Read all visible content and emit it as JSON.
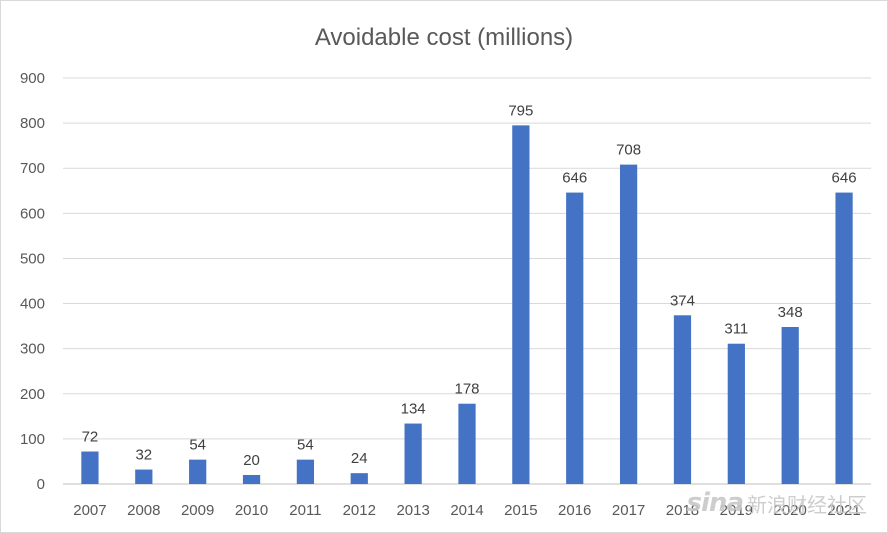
{
  "chart_data": {
    "type": "bar",
    "title": "Avoidable cost (millions)",
    "categories": [
      "2007",
      "2008",
      "2009",
      "2010",
      "2011",
      "2012",
      "2013",
      "2014",
      "2015",
      "2016",
      "2017",
      "2018",
      "2019",
      "2020",
      "2021"
    ],
    "values": [
      72,
      32,
      54,
      20,
      54,
      24,
      134,
      178,
      795,
      646,
      708,
      374,
      311,
      348,
      646
    ],
    "ylim": [
      0,
      900
    ],
    "yticks": [
      0,
      100,
      200,
      300,
      400,
      500,
      600,
      700,
      800,
      900
    ],
    "grid": true,
    "legend": "none",
    "bar_color": "#4472c4"
  },
  "watermark": {
    "brand": "sina",
    "text": "新浪财经社区"
  }
}
